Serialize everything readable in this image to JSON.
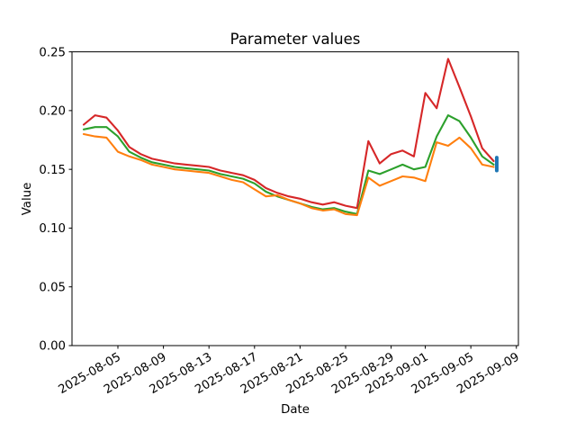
{
  "figure": {
    "background": "#ffffff",
    "axis_color": "#000000",
    "text_color": "#000000"
  },
  "chart_data": {
    "type": "line",
    "title": "Parameter values",
    "xlabel": "Date",
    "ylabel": "Value",
    "ylim": [
      0.0,
      0.25
    ],
    "ytick_values": [
      0.0,
      0.05,
      0.1,
      0.15,
      0.2,
      0.25
    ],
    "ytick_labels": [
      "0.00",
      "0.05",
      "0.10",
      "0.15",
      "0.20",
      "0.25"
    ],
    "xticks": [
      "2025-08-05",
      "2025-08-09",
      "2025-08-13",
      "2025-08-17",
      "2025-08-21",
      "2025-08-25",
      "2025-08-29",
      "2025-09-01",
      "2025-09-05",
      "2025-09-09"
    ],
    "grid": false,
    "legend": false,
    "x": [
      "2025-08-02",
      "2025-08-03",
      "2025-08-04",
      "2025-08-05",
      "2025-08-06",
      "2025-08-07",
      "2025-08-08",
      "2025-08-09",
      "2025-08-10",
      "2025-08-11",
      "2025-08-12",
      "2025-08-13",
      "2025-08-14",
      "2025-08-15",
      "2025-08-16",
      "2025-08-17",
      "2025-08-18",
      "2025-08-19",
      "2025-08-20",
      "2025-08-21",
      "2025-08-22",
      "2025-08-23",
      "2025-08-24",
      "2025-08-25",
      "2025-08-26",
      "2025-08-27",
      "2025-08-28",
      "2025-08-29",
      "2025-08-30",
      "2025-08-31",
      "2025-09-01",
      "2025-09-02",
      "2025-09-03",
      "2025-09-04",
      "2025-09-05",
      "2025-09-06",
      "2025-09-07"
    ],
    "series": [
      {
        "name": "red",
        "color": "#d62728",
        "values": [
          0.188,
          0.196,
          0.194,
          0.183,
          0.169,
          0.163,
          0.159,
          0.157,
          0.155,
          0.154,
          0.153,
          0.152,
          0.149,
          0.147,
          0.145,
          0.141,
          0.134,
          0.13,
          0.127,
          0.125,
          0.122,
          0.12,
          0.122,
          0.119,
          0.117,
          0.174,
          0.155,
          0.163,
          0.166,
          0.161,
          0.215,
          0.202,
          0.244,
          0.22,
          0.195,
          0.168,
          0.157
        ]
      },
      {
        "name": "green",
        "color": "#2ca02c",
        "values": [
          0.184,
          0.186,
          0.186,
          0.178,
          0.165,
          0.16,
          0.156,
          0.154,
          0.152,
          0.151,
          0.15,
          0.149,
          0.146,
          0.144,
          0.142,
          0.138,
          0.131,
          0.127,
          0.124,
          0.121,
          0.118,
          0.116,
          0.117,
          0.114,
          0.112,
          0.149,
          0.146,
          0.15,
          0.154,
          0.15,
          0.152,
          0.178,
          0.196,
          0.191,
          0.177,
          0.161,
          0.154
        ]
      },
      {
        "name": "orange",
        "color": "#ff7f0e",
        "values": [
          0.18,
          0.178,
          0.177,
          0.165,
          0.161,
          0.158,
          0.154,
          0.152,
          0.15,
          0.149,
          0.148,
          0.147,
          0.144,
          0.141,
          0.139,
          0.133,
          0.127,
          0.128,
          0.124,
          0.121,
          0.117,
          0.115,
          0.116,
          0.112,
          0.111,
          0.143,
          0.136,
          0.14,
          0.144,
          0.143,
          0.14,
          0.173,
          0.17,
          0.177,
          0.168,
          0.154,
          0.152
        ]
      }
    ],
    "end_marker": {
      "name": "blue-end-marker",
      "color": "#1f77b4",
      "date": "2025-09-07",
      "value_top": 0.16,
      "value_bottom": 0.149
    }
  }
}
